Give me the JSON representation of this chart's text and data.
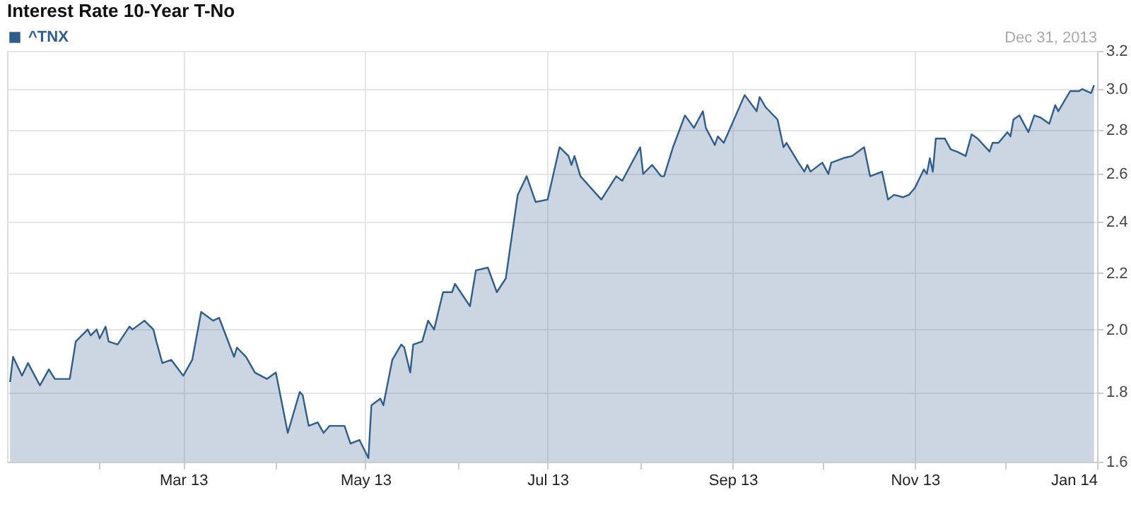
{
  "chart_data": {
    "type": "area",
    "title": "Interest Rate 10-Year T-No",
    "annotations": [
      "Dec 31, 2013"
    ],
    "log": "y",
    "grid": true,
    "legend": "top left",
    "xlim": [
      "2013-01-01",
      "2014-01-01"
    ],
    "xticks": [
      {
        "value": "2013-02-01",
        "label": null
      },
      {
        "value": "2013-03-01",
        "label": "Mar 13"
      },
      {
        "value": "2013-04-01",
        "label": null
      },
      {
        "value": "2013-05-01",
        "label": "May 13"
      },
      {
        "value": "2013-06-01",
        "label": null
      },
      {
        "value": "2013-07-01",
        "label": "Jul 13"
      },
      {
        "value": "2013-08-01",
        "label": null
      },
      {
        "value": "2013-09-01",
        "label": "Sep 13"
      },
      {
        "value": "2013-10-01",
        "label": null
      },
      {
        "value": "2013-11-01",
        "label": "Nov 13"
      },
      {
        "value": "2013-12-01",
        "label": null
      },
      {
        "value": "2014-01-01",
        "label": "Jan 14"
      }
    ],
    "ylim": [
      1.6,
      3.2
    ],
    "yticks": [
      1.6,
      1.8,
      {
        "value": 2.0,
        "label": "2.0"
      },
      2.2,
      2.4,
      2.6,
      2.8,
      {
        "value": 3.0,
        "label": "3.0"
      },
      3.2
    ],
    "series": [
      {
        "name": "^TNX",
        "color": "#2f5d8c",
        "x": [
          "2013-01-02",
          "2013-01-03",
          "2013-01-06",
          "2013-01-08",
          "2013-01-12",
          "2013-01-15",
          "2013-01-17",
          "2013-01-22",
          "2013-01-24",
          "2013-01-28",
          "2013-01-29",
          "2013-01-31",
          "2013-02-01",
          "2013-02-03",
          "2013-02-04",
          "2013-02-07",
          "2013-02-11",
          "2013-02-12",
          "2013-02-16",
          "2013-02-19",
          "2013-02-20",
          "2013-02-22",
          "2013-02-25",
          "2013-03-01",
          "2013-03-04",
          "2013-03-07",
          "2013-03-11",
          "2013-03-13",
          "2013-03-18",
          "2013-03-19",
          "2013-03-22",
          "2013-03-25",
          "2013-03-29",
          "2013-04-01",
          "2013-04-05",
          "2013-04-09",
          "2013-04-10",
          "2013-04-12",
          "2013-04-15",
          "2013-04-17",
          "2013-04-19",
          "2013-04-24",
          "2013-04-26",
          "2013-04-29",
          "2013-05-02",
          "2013-05-03",
          "2013-05-06",
          "2013-05-07",
          "2013-05-10",
          "2013-05-13",
          "2013-05-14",
          "2013-05-16",
          "2013-05-17",
          "2013-05-20",
          "2013-05-22",
          "2013-05-24",
          "2013-05-27",
          "2013-05-30",
          "2013-05-31",
          "2013-06-05",
          "2013-06-07",
          "2013-06-11",
          "2013-06-14",
          "2013-06-17",
          "2013-06-21",
          "2013-06-24",
          "2013-06-27",
          "2013-07-01",
          "2013-07-05",
          "2013-07-08",
          "2013-07-09",
          "2013-07-10",
          "2013-07-12",
          "2013-07-19",
          "2013-07-24",
          "2013-07-26",
          "2013-08-01",
          "2013-08-02",
          "2013-08-05",
          "2013-08-08",
          "2013-08-09",
          "2013-08-12",
          "2013-08-16",
          "2013-08-19",
          "2013-08-22",
          "2013-08-23",
          "2013-08-26",
          "2013-08-27",
          "2013-08-29",
          "2013-09-05",
          "2013-09-09",
          "2013-09-10",
          "2013-09-12",
          "2013-09-16",
          "2013-09-18",
          "2013-09-19",
          "2013-09-23",
          "2013-09-25",
          "2013-09-26",
          "2013-09-27",
          "2013-10-01",
          "2013-10-03",
          "2013-10-04",
          "2013-10-08",
          "2013-10-11",
          "2013-10-15",
          "2013-10-17",
          "2013-10-21",
          "2013-10-23",
          "2013-10-25",
          "2013-10-28",
          "2013-10-30",
          "2013-11-01",
          "2013-11-04",
          "2013-11-05",
          "2013-11-06",
          "2013-11-07",
          "2013-11-08",
          "2013-11-11",
          "2013-11-13",
          "2013-11-15",
          "2013-11-18",
          "2013-11-20",
          "2013-11-22",
          "2013-11-26",
          "2013-11-27",
          "2013-11-29",
          "2013-12-02",
          "2013-12-03",
          "2013-12-04",
          "2013-12-06",
          "2013-12-09",
          "2013-12-11",
          "2013-12-13",
          "2013-12-16",
          "2013-12-18",
          "2013-12-19",
          "2013-12-23",
          "2013-12-26",
          "2013-12-27",
          "2013-12-30",
          "2013-12-31"
        ],
        "values": [
          1.83,
          1.91,
          1.85,
          1.89,
          1.82,
          1.87,
          1.84,
          1.84,
          1.96,
          2.0,
          1.98,
          2.0,
          1.97,
          2.01,
          1.96,
          1.95,
          2.01,
          2.0,
          2.03,
          2.0,
          1.96,
          1.89,
          1.9,
          1.85,
          1.9,
          2.06,
          2.03,
          2.04,
          1.91,
          1.94,
          1.91,
          1.86,
          1.84,
          1.86,
          1.68,
          1.8,
          1.79,
          1.7,
          1.71,
          1.68,
          1.7,
          1.7,
          1.65,
          1.66,
          1.61,
          1.76,
          1.78,
          1.76,
          1.9,
          1.95,
          1.94,
          1.86,
          1.95,
          1.96,
          2.03,
          2.0,
          2.13,
          2.13,
          2.16,
          2.08,
          2.21,
          2.22,
          2.13,
          2.18,
          2.51,
          2.59,
          2.48,
          2.49,
          2.72,
          2.68,
          2.64,
          2.68,
          2.59,
          2.49,
          2.59,
          2.57,
          2.72,
          2.6,
          2.64,
          2.59,
          2.59,
          2.72,
          2.87,
          2.81,
          2.89,
          2.81,
          2.73,
          2.77,
          2.74,
          2.97,
          2.89,
          2.96,
          2.91,
          2.85,
          2.72,
          2.74,
          2.65,
          2.61,
          2.64,
          2.61,
          2.65,
          2.6,
          2.65,
          2.67,
          2.68,
          2.72,
          2.59,
          2.61,
          2.49,
          2.51,
          2.5,
          2.51,
          2.54,
          2.62,
          2.6,
          2.67,
          2.61,
          2.76,
          2.76,
          2.71,
          2.7,
          2.68,
          2.78,
          2.76,
          2.7,
          2.74,
          2.74,
          2.79,
          2.77,
          2.85,
          2.87,
          2.79,
          2.87,
          2.86,
          2.83,
          2.92,
          2.89,
          2.99,
          2.99,
          3.0,
          2.98,
          3.02
        ]
      }
    ]
  }
}
